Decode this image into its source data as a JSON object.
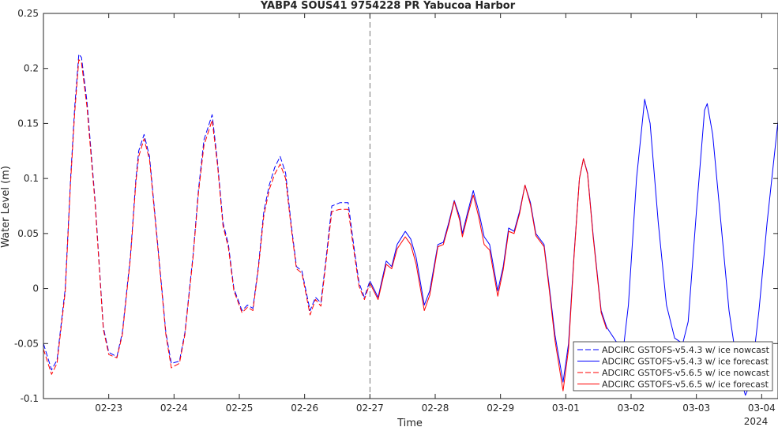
{
  "chart_data": {
    "type": "line",
    "title": "YABP4 SOUS41 9754228 PR Yabucoa Harbor",
    "xlabel": "Time",
    "ylabel": "Water Level (m)",
    "year_label": "2024",
    "xlim": [
      "2024-02-22T00:00",
      "2024-03-04T06:00"
    ],
    "ylim": [
      -0.1,
      0.25
    ],
    "x_ticks": [
      "02-23",
      "02-24",
      "02-25",
      "02-26",
      "02-27",
      "02-28",
      "02-29",
      "03-01",
      "03-02",
      "03-03",
      "03-04"
    ],
    "y_ticks": [
      "-0.1",
      "-0.05",
      "0",
      "0.05",
      "0.1",
      "0.15",
      "0.2",
      "0.25"
    ],
    "nowcast_forecast_boundary": "2024-02-27T00:00",
    "grid": false,
    "legend_position": "bottom-right",
    "series": [
      {
        "name": "ADCIRC GSTOFS-v5.4.3 w/ ice nowcast",
        "color": "#0000ff",
        "style": "dashed",
        "points": [
          [
            "2024-02-22T00:00",
            -0.05
          ],
          [
            "2024-02-22T03:00",
            -0.074
          ],
          [
            "2024-02-22T05:00",
            -0.065
          ],
          [
            "2024-02-22T08:00",
            0.0
          ],
          [
            "2024-02-22T10:00",
            0.1
          ],
          [
            "2024-02-22T11:30",
            0.165
          ],
          [
            "2024-02-22T13:00",
            0.213
          ],
          [
            "2024-02-22T14:00",
            0.21
          ],
          [
            "2024-02-22T16:00",
            0.17
          ],
          [
            "2024-02-22T19:00",
            0.08
          ],
          [
            "2024-02-22T22:00",
            -0.035
          ],
          [
            "2024-02-23T00:00",
            -0.058
          ],
          [
            "2024-02-23T03:00",
            -0.062
          ],
          [
            "2024-02-23T05:00",
            -0.04
          ],
          [
            "2024-02-23T08:00",
            0.03
          ],
          [
            "2024-02-23T10:00",
            0.1
          ],
          [
            "2024-02-23T11:00",
            0.125
          ],
          [
            "2024-02-23T13:00",
            0.14
          ],
          [
            "2024-02-23T15:00",
            0.12
          ],
          [
            "2024-02-23T18:00",
            0.04
          ],
          [
            "2024-02-23T21:00",
            -0.04
          ],
          [
            "2024-02-23T23:00",
            -0.068
          ],
          [
            "2024-02-24T02:00",
            -0.066
          ],
          [
            "2024-02-24T04:00",
            -0.04
          ],
          [
            "2024-02-24T07:00",
            0.03
          ],
          [
            "2024-02-24T09:00",
            0.09
          ],
          [
            "2024-02-24T11:00",
            0.135
          ],
          [
            "2024-02-24T14:00",
            0.158
          ],
          [
            "2024-02-24T16:00",
            0.115
          ],
          [
            "2024-02-24T18:00",
            0.06
          ],
          [
            "2024-02-24T20:00",
            0.04
          ],
          [
            "2024-02-24T22:00",
            0.0
          ],
          [
            "2024-02-25T01:00",
            -0.02
          ],
          [
            "2024-02-25T03:00",
            -0.015
          ],
          [
            "2024-02-25T05:00",
            -0.018
          ],
          [
            "2024-02-25T07:00",
            0.02
          ],
          [
            "2024-02-25T09:00",
            0.07
          ],
          [
            "2024-02-25T11:00",
            0.094
          ],
          [
            "2024-02-25T13:00",
            0.11
          ],
          [
            "2024-02-25T15:00",
            0.12
          ],
          [
            "2024-02-25T17:00",
            0.105
          ],
          [
            "2024-02-25T19:00",
            0.06
          ],
          [
            "2024-02-25T21:00",
            0.02
          ],
          [
            "2024-02-25T23:00",
            0.016
          ],
          [
            "2024-02-26T02:00",
            -0.02
          ],
          [
            "2024-02-26T04:00",
            -0.008
          ],
          [
            "2024-02-26T06:00",
            -0.013
          ],
          [
            "2024-02-26T08:00",
            0.03
          ],
          [
            "2024-02-26T10:00",
            0.075
          ],
          [
            "2024-02-26T13:00",
            0.078
          ],
          [
            "2024-02-26T16:00",
            0.078
          ],
          [
            "2024-02-26T18:00",
            0.04
          ],
          [
            "2024-02-26T20:00",
            0.005
          ],
          [
            "2024-02-26T22:00",
            -0.008
          ],
          [
            "2024-02-27T00:00",
            0.007
          ]
        ]
      },
      {
        "name": "ADCIRC GSTOFS-v5.4.3 w/ ice forecast",
        "color": "#0000ff",
        "style": "solid",
        "points": [
          [
            "2024-02-27T00:00",
            0.007
          ],
          [
            "2024-02-27T03:00",
            -0.008
          ],
          [
            "2024-02-27T06:00",
            0.025
          ],
          [
            "2024-02-27T08:00",
            0.02
          ],
          [
            "2024-02-27T10:00",
            0.04
          ],
          [
            "2024-02-27T13:00",
            0.052
          ],
          [
            "2024-02-27T15:00",
            0.045
          ],
          [
            "2024-02-27T17:00",
            0.028
          ],
          [
            "2024-02-27T20:00",
            -0.015
          ],
          [
            "2024-02-27T22:00",
            -0.002
          ],
          [
            "2024-02-28T01:00",
            0.04
          ],
          [
            "2024-02-28T03:00",
            0.042
          ],
          [
            "2024-02-28T05:00",
            0.06
          ],
          [
            "2024-02-28T07:00",
            0.08
          ],
          [
            "2024-02-28T09:00",
            0.065
          ],
          [
            "2024-02-28T10:00",
            0.05
          ],
          [
            "2024-02-28T12:00",
            0.07
          ],
          [
            "2024-02-28T14:00",
            0.089
          ],
          [
            "2024-02-28T16:00",
            0.07
          ],
          [
            "2024-02-28T18:00",
            0.047
          ],
          [
            "2024-02-28T20:00",
            0.04
          ],
          [
            "2024-02-28T23:00",
            -0.002
          ],
          [
            "2024-02-29T01:00",
            0.02
          ],
          [
            "2024-02-29T03:00",
            0.055
          ],
          [
            "2024-02-29T05:00",
            0.052
          ],
          [
            "2024-02-29T07:00",
            0.07
          ],
          [
            "2024-02-29T09:00",
            0.094
          ],
          [
            "2024-02-29T11:00",
            0.078
          ],
          [
            "2024-02-29T13:00",
            0.05
          ],
          [
            "2024-02-29T16:00",
            0.04
          ],
          [
            "2024-02-29T18:00",
            0.0
          ],
          [
            "2024-02-29T20:00",
            -0.042
          ],
          [
            "2024-02-29T23:00",
            -0.085
          ],
          [
            "2024-03-01T01:00",
            -0.05
          ],
          [
            "2024-03-01T03:00",
            0.03
          ],
          [
            "2024-03-01T05:00",
            0.1
          ],
          [
            "2024-03-01T06:30",
            0.118
          ],
          [
            "2024-03-01T08:00",
            0.105
          ],
          [
            "2024-03-01T10:00",
            0.05
          ],
          [
            "2024-03-01T13:00",
            -0.02
          ],
          [
            "2024-03-01T15:00",
            -0.035
          ],
          [
            "2024-03-01T19:00",
            -0.05
          ],
          [
            "2024-03-01T21:00",
            -0.058
          ],
          [
            "2024-03-01T23:00",
            -0.015
          ],
          [
            "2024-03-02T02:00",
            0.1
          ],
          [
            "2024-03-02T05:00",
            0.172
          ],
          [
            "2024-03-02T07:00",
            0.15
          ],
          [
            "2024-03-02T10:00",
            0.06
          ],
          [
            "2024-03-02T13:00",
            -0.015
          ],
          [
            "2024-03-02T16:00",
            -0.045
          ],
          [
            "2024-03-02T19:00",
            -0.05
          ],
          [
            "2024-03-02T21:00",
            -0.03
          ],
          [
            "2024-03-03T00:00",
            0.07
          ],
          [
            "2024-03-03T03:00",
            0.162
          ],
          [
            "2024-03-03T04:00",
            0.168
          ],
          [
            "2024-03-03T06:00",
            0.14
          ],
          [
            "2024-03-03T09:00",
            0.06
          ],
          [
            "2024-03-03T12:00",
            -0.02
          ],
          [
            "2024-03-03T15:00",
            -0.07
          ],
          [
            "2024-03-03T18:00",
            -0.097
          ],
          [
            "2024-03-03T20:00",
            -0.085
          ],
          [
            "2024-03-03T23:00",
            -0.02
          ],
          [
            "2024-03-04T02:00",
            0.06
          ],
          [
            "2024-03-04T06:00",
            0.152
          ]
        ]
      },
      {
        "name": "ADCIRC GSTOFS-v5.6.5 w/ ice nowcast",
        "color": "#ff0000",
        "style": "dashed",
        "points": [
          [
            "2024-02-22T00:00",
            -0.055
          ],
          [
            "2024-02-22T03:00",
            -0.078
          ],
          [
            "2024-02-22T05:00",
            -0.068
          ],
          [
            "2024-02-22T08:00",
            -0.003
          ],
          [
            "2024-02-22T10:00",
            0.097
          ],
          [
            "2024-02-22T11:30",
            0.16
          ],
          [
            "2024-02-22T13:00",
            0.208
          ],
          [
            "2024-02-22T14:00",
            0.205
          ],
          [
            "2024-02-22T16:00",
            0.165
          ],
          [
            "2024-02-22T19:00",
            0.077
          ],
          [
            "2024-02-22T22:00",
            -0.037
          ],
          [
            "2024-02-23T00:00",
            -0.06
          ],
          [
            "2024-02-23T03:00",
            -0.063
          ],
          [
            "2024-02-23T05:00",
            -0.042
          ],
          [
            "2024-02-23T08:00",
            0.028
          ],
          [
            "2024-02-23T10:00",
            0.097
          ],
          [
            "2024-02-23T11:00",
            0.12
          ],
          [
            "2024-02-23T13:00",
            0.136
          ],
          [
            "2024-02-23T15:00",
            0.117
          ],
          [
            "2024-02-23T18:00",
            0.038
          ],
          [
            "2024-02-23T21:00",
            -0.042
          ],
          [
            "2024-02-23T23:00",
            -0.072
          ],
          [
            "2024-02-24T02:00",
            -0.068
          ],
          [
            "2024-02-24T04:00",
            -0.042
          ],
          [
            "2024-02-24T07:00",
            0.028
          ],
          [
            "2024-02-24T09:00",
            0.087
          ],
          [
            "2024-02-24T11:00",
            0.13
          ],
          [
            "2024-02-24T14:00",
            0.153
          ],
          [
            "2024-02-24T16:00",
            0.112
          ],
          [
            "2024-02-24T18:00",
            0.057
          ],
          [
            "2024-02-24T20:00",
            0.037
          ],
          [
            "2024-02-24T22:00",
            -0.002
          ],
          [
            "2024-02-25T01:00",
            -0.022
          ],
          [
            "2024-02-25T03:00",
            -0.017
          ],
          [
            "2024-02-25T05:00",
            -0.02
          ],
          [
            "2024-02-25T07:00",
            0.018
          ],
          [
            "2024-02-25T09:00",
            0.066
          ],
          [
            "2024-02-25T11:00",
            0.09
          ],
          [
            "2024-02-25T13:00",
            0.104
          ],
          [
            "2024-02-25T15:00",
            0.113
          ],
          [
            "2024-02-25T17:00",
            0.1
          ],
          [
            "2024-02-25T19:00",
            0.057
          ],
          [
            "2024-02-25T21:00",
            0.018
          ],
          [
            "2024-02-25T23:00",
            0.014
          ],
          [
            "2024-02-26T02:00",
            -0.024
          ],
          [
            "2024-02-26T04:00",
            -0.01
          ],
          [
            "2024-02-26T06:00",
            -0.016
          ],
          [
            "2024-02-26T08:00",
            0.027
          ],
          [
            "2024-02-26T10:00",
            0.07
          ],
          [
            "2024-02-26T13:00",
            0.072
          ],
          [
            "2024-02-26T16:00",
            0.072
          ],
          [
            "2024-02-26T18:00",
            0.036
          ],
          [
            "2024-02-26T20:00",
            0.002
          ],
          [
            "2024-02-26T22:00",
            -0.01
          ],
          [
            "2024-02-27T00:00",
            0.005
          ]
        ]
      },
      {
        "name": "ADCIRC GSTOFS-v5.6.5 w/ ice forecast",
        "color": "#ff0000",
        "style": "solid",
        "points": [
          [
            "2024-02-27T00:00",
            0.005
          ],
          [
            "2024-02-27T03:00",
            -0.01
          ],
          [
            "2024-02-27T06:00",
            0.022
          ],
          [
            "2024-02-27T08:00",
            0.018
          ],
          [
            "2024-02-27T10:00",
            0.036
          ],
          [
            "2024-02-27T13:00",
            0.047
          ],
          [
            "2024-02-27T15:00",
            0.04
          ],
          [
            "2024-02-27T17:00",
            0.022
          ],
          [
            "2024-02-27T20:00",
            -0.02
          ],
          [
            "2024-02-27T22:00",
            -0.006
          ],
          [
            "2024-02-28T01:00",
            0.038
          ],
          [
            "2024-02-28T03:00",
            0.04
          ],
          [
            "2024-02-28T05:00",
            0.058
          ],
          [
            "2024-02-28T07:00",
            0.079
          ],
          [
            "2024-02-28T09:00",
            0.062
          ],
          [
            "2024-02-28T10:00",
            0.047
          ],
          [
            "2024-02-28T12:00",
            0.067
          ],
          [
            "2024-02-28T14:00",
            0.085
          ],
          [
            "2024-02-28T16:00",
            0.065
          ],
          [
            "2024-02-28T18:00",
            0.04
          ],
          [
            "2024-02-28T20:00",
            0.035
          ],
          [
            "2024-02-28T23:00",
            -0.007
          ],
          [
            "2024-02-29T01:00",
            0.017
          ],
          [
            "2024-02-29T03:00",
            0.052
          ],
          [
            "2024-02-29T05:00",
            0.05
          ],
          [
            "2024-02-29T07:00",
            0.068
          ],
          [
            "2024-02-29T09:00",
            0.094
          ],
          [
            "2024-02-29T11:00",
            0.076
          ],
          [
            "2024-02-29T13:00",
            0.048
          ],
          [
            "2024-02-29T16:00",
            0.038
          ],
          [
            "2024-02-29T18:00",
            -0.003
          ],
          [
            "2024-02-29T20:00",
            -0.047
          ],
          [
            "2024-02-29T23:00",
            -0.093
          ],
          [
            "2024-03-01T01:00",
            -0.055
          ],
          [
            "2024-03-01T03:00",
            0.028
          ],
          [
            "2024-03-01T05:00",
            0.1
          ],
          [
            "2024-03-01T06:30",
            0.118
          ],
          [
            "2024-03-01T08:00",
            0.104
          ],
          [
            "2024-03-01T10:00",
            0.048
          ],
          [
            "2024-03-01T13:00",
            -0.022
          ],
          [
            "2024-03-01T15:00",
            -0.037
          ]
        ]
      }
    ]
  }
}
